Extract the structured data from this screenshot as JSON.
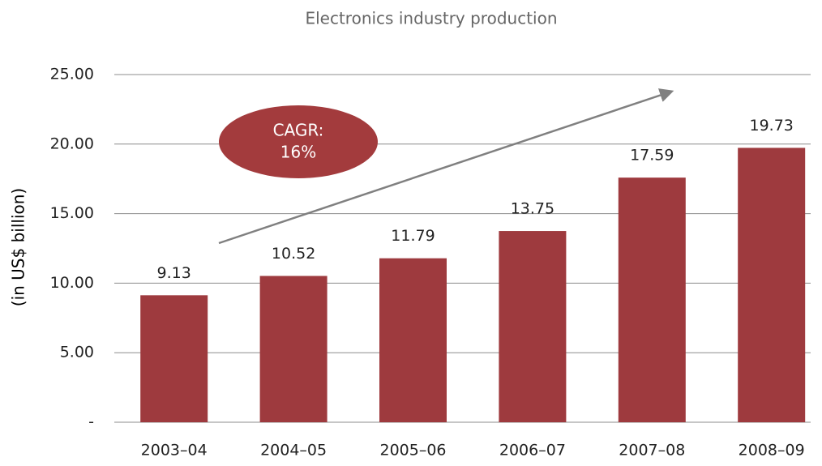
{
  "chart_data": {
    "type": "bar",
    "title": "Electronics industry production",
    "y_label": "(in US$ billion)",
    "categories": [
      "2003–04",
      "2004–05",
      "2005–06",
      "2006–07",
      "2007–08",
      "2008–09"
    ],
    "values": [
      9.13,
      10.52,
      11.79,
      13.75,
      17.59,
      19.73
    ],
    "color": "#9e3a3e",
    "ylim": [
      0,
      25
    ],
    "yticks": [
      {
        "value": 0,
        "label": "-"
      },
      {
        "value": 5,
        "label": "5.00"
      },
      {
        "value": 10,
        "label": "10.00"
      },
      {
        "value": 15,
        "label": "15.00"
      },
      {
        "value": 20,
        "label": "20.00"
      },
      {
        "value": 25,
        "label": "25.00"
      }
    ],
    "grid": true,
    "annotation": [
      "CAGR:",
      "16%"
    ]
  }
}
